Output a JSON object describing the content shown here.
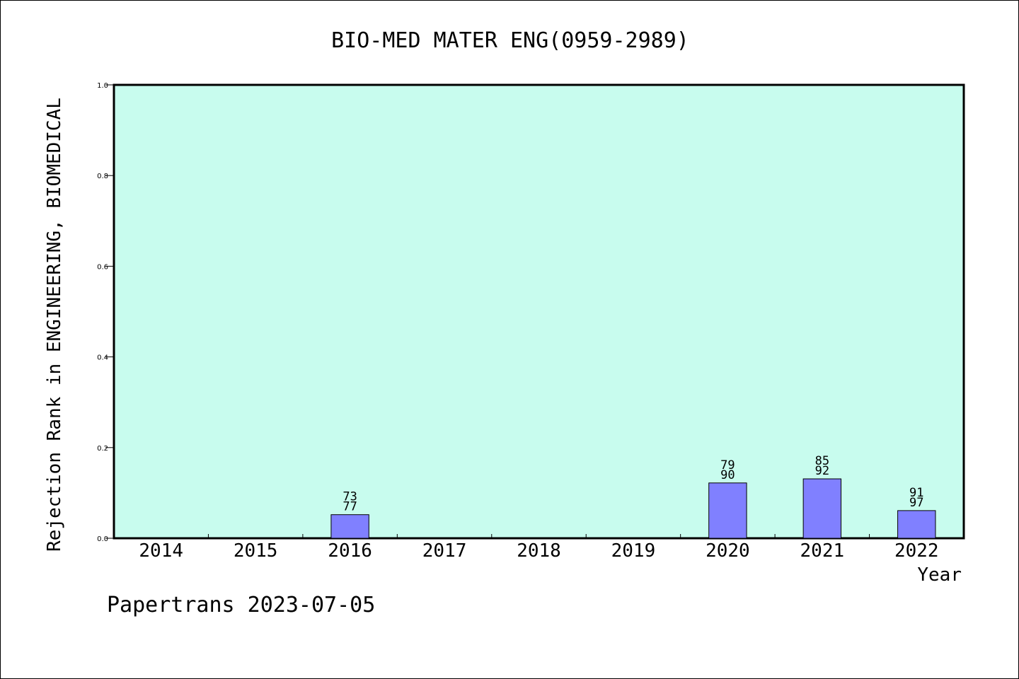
{
  "chart_data": {
    "type": "bar",
    "title": "BIO-MED MATER ENG(0959-2989)",
    "xlabel": "Year",
    "ylabel": "Rejection Rank in ENGINEERING, BIOMEDICAL",
    "categories": [
      "2014",
      "2015",
      "2016",
      "2017",
      "2018",
      "2019",
      "2020",
      "2021",
      "2022"
    ],
    "values": [
      null,
      null,
      0.052,
      null,
      null,
      null,
      0.122,
      0.131,
      0.061
    ],
    "labels_top": [
      null,
      null,
      "73",
      null,
      null,
      null,
      "79",
      "85",
      "91"
    ],
    "labels_bottom": [
      null,
      null,
      "77",
      null,
      null,
      null,
      "90",
      "92",
      "97"
    ],
    "ylim": [
      0,
      1.0
    ],
    "yticks": [
      "0.0",
      "0.2",
      "0.4",
      "0.6",
      "0.8",
      "1.0"
    ],
    "grid": false,
    "colors": {
      "plot_background": "#c8fcee",
      "bar_fill": "#8080ff",
      "bar_stroke": "#000000"
    }
  },
  "footer": {
    "credit": "Papertrans 2023-07-05"
  }
}
